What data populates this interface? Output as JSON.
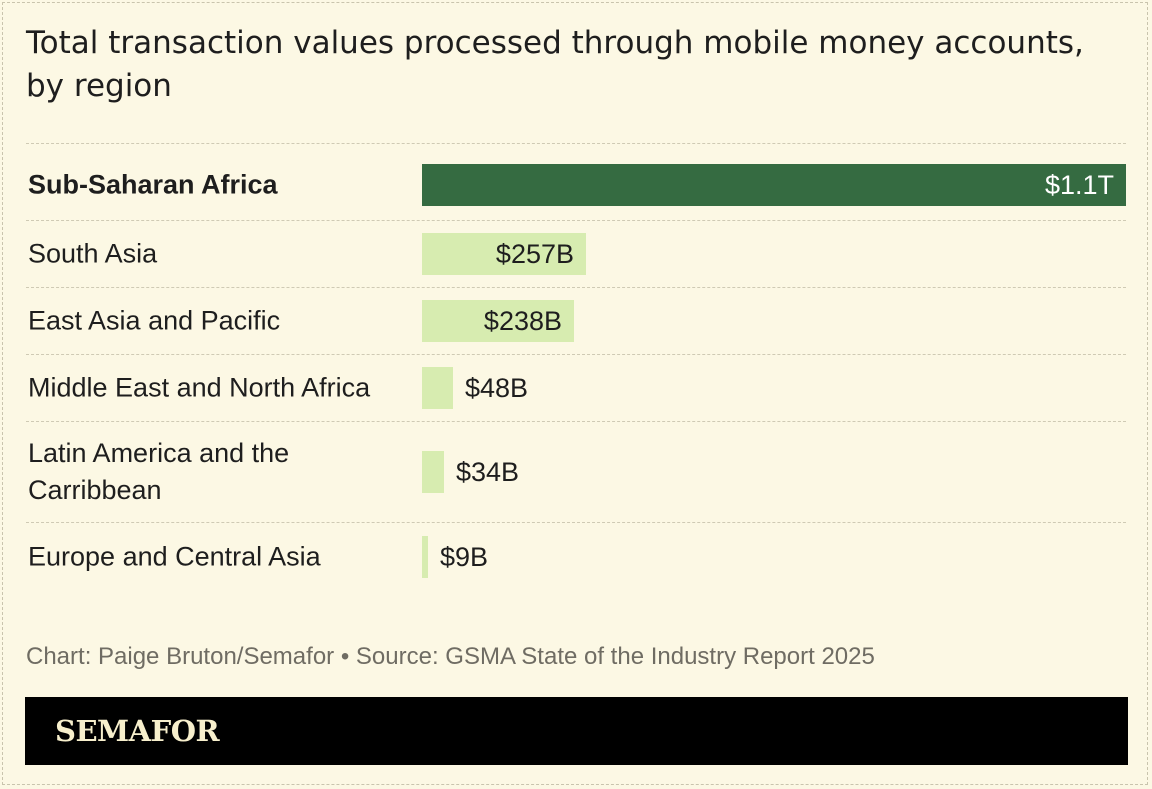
{
  "title": "Total transaction values processed through mobile money accounts, by region",
  "source": "Chart: Paige Bruton/Semafor • Source: GSMA State of the Industry Report 2025",
  "brand": "SEMAFOR",
  "colors": {
    "background": "#fcf8e4",
    "highlight_bar": "#356b41",
    "bar": "#d7ecb0",
    "brand_background": "#000000",
    "brand_text": "#f7efcc"
  },
  "chart_data": {
    "type": "bar",
    "orientation": "horizontal",
    "unit": "USD",
    "categories": [
      "Sub-Saharan Africa",
      "South Asia",
      "East Asia and Pacific",
      "Middle East and North Africa",
      "Latin America and the Carribbean",
      "Europe and Central Asia"
    ],
    "values": [
      1100,
      257,
      238,
      48,
      34,
      9
    ],
    "value_unit": "billions USD",
    "labels": [
      "$1.1T",
      "$257B",
      "$238B",
      "$48B",
      "$34B",
      "$9B"
    ],
    "highlight": [
      "Sub-Saharan Africa"
    ],
    "xlim": [
      0,
      1100
    ],
    "grid": false
  }
}
